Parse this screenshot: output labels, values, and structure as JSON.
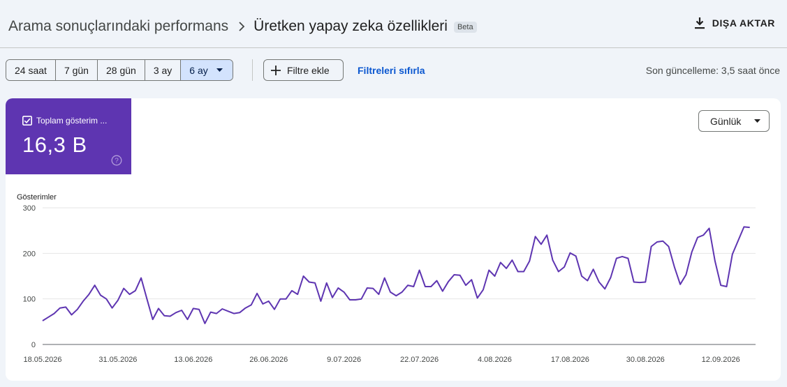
{
  "breadcrumb": {
    "root": "Arama sonuçlarındaki performans",
    "current": "Üretken yapay zeka özellikleri",
    "badge": "Beta"
  },
  "header": {
    "export_label": "DIŞA AKTAR"
  },
  "toolbar": {
    "date_ranges": [
      {
        "label": "24 saat",
        "selected": false
      },
      {
        "label": "7 gün",
        "selected": false
      },
      {
        "label": "28 gün",
        "selected": false
      },
      {
        "label": "3 ay",
        "selected": false
      },
      {
        "label": "6 ay",
        "selected": true
      }
    ],
    "add_filter_label": "Filtre ekle",
    "reset_filters_label": "Filtreleri sıfırla",
    "last_updated": "Son güncelleme: 3,5 saat önce"
  },
  "metric": {
    "label": "Toplam gösterim ...",
    "value": "16,3 B",
    "checked": true
  },
  "granularity": {
    "label": "Günlük"
  },
  "colors": {
    "accent": "#5e35b1",
    "line": "#5e35b1",
    "selected": "#d3e3fd",
    "link": "#0b57d0"
  },
  "chart_data": {
    "type": "line",
    "ylabel": "Gösterimler",
    "yticks": [
      0,
      100,
      200,
      300
    ],
    "ylim": [
      0,
      300
    ],
    "xlim": [
      "2026-05-18",
      "2026-09-18"
    ],
    "xticks": [
      "2026-05-18",
      "2026-05-31",
      "2026-06-13",
      "2026-06-26",
      "2026-07-09",
      "2026-07-22",
      "2026-08-04",
      "2026-08-17",
      "2026-08-30",
      "2026-09-12"
    ],
    "xtick_labels": [
      "18.05.2026",
      "31.05.2026",
      "13.06.2026",
      "26.06.2026",
      "9.07.2026",
      "22.07.2026",
      "4.08.2026",
      "17.08.2026",
      "30.08.2026",
      "12.09.2026"
    ],
    "grid": true,
    "series": [
      {
        "values": [
          52,
          60,
          68,
          80,
          82,
          65,
          77,
          95,
          110,
          130,
          108,
          100,
          80,
          97,
          123,
          110,
          118,
          146,
          100,
          55,
          79,
          63,
          62,
          70,
          75,
          55,
          79,
          77,
          46,
          71,
          68,
          78,
          73,
          68,
          70,
          80,
          87,
          112,
          89,
          95,
          77,
          100,
          100,
          118,
          110,
          150,
          137,
          135,
          95,
          135,
          103,
          124,
          115,
          98,
          98,
          100,
          124,
          123,
          110,
          146,
          115,
          107,
          115,
          130,
          127,
          163,
          127,
          127,
          140,
          117,
          138,
          153,
          152,
          130,
          142,
          102,
          120,
          163,
          150,
          180,
          167,
          185,
          160,
          160,
          183,
          237,
          220,
          240,
          185,
          160,
          170,
          201,
          194,
          150,
          140,
          165,
          137,
          122,
          147,
          189,
          193,
          189,
          137,
          136,
          137,
          215,
          225,
          227,
          215,
          170,
          132,
          153,
          203,
          235,
          240,
          255,
          183,
          130,
          127,
          198,
          228,
          258,
          257
        ]
      }
    ]
  }
}
